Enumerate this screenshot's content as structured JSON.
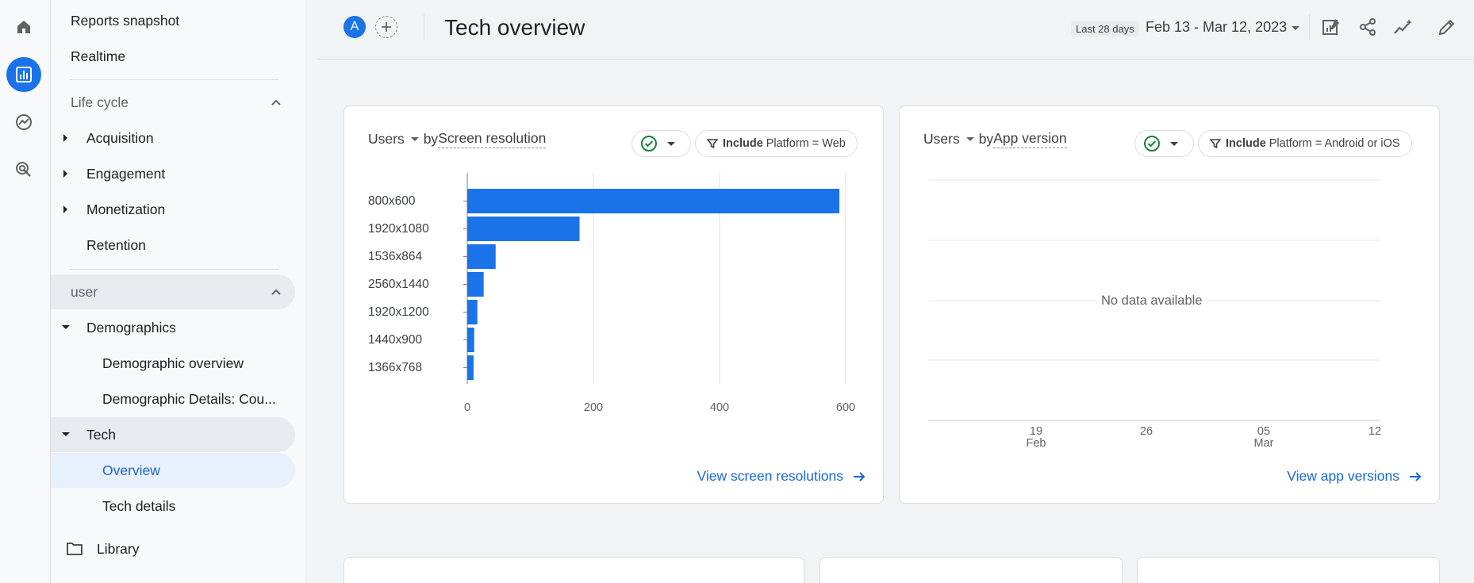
{
  "nav": {
    "reports_snapshot": "Reports snapshot",
    "realtime": "Realtime",
    "lifecycle": {
      "title": "Life cycle",
      "items": [
        "Acquisition",
        "Engagement",
        "Monetization",
        "Retention"
      ]
    },
    "user": {
      "title": "user",
      "demographics": "Demographics",
      "demographic_overview": "Demographic overview",
      "demographic_details": "Demographic Details: Cou...",
      "tech": "Tech",
      "overview": "Overview",
      "tech_details": "Tech details"
    },
    "library": "Library"
  },
  "header": {
    "avatar_letter": "A",
    "title": "Tech overview",
    "date_chip": "Last 28 days",
    "date_range": "Feb 13 - Mar 12, 2023"
  },
  "card1": {
    "metric": "Users",
    "by": "by",
    "dimension": "Screen resolution",
    "filter_include": "Include",
    "filter_text": "Platform = Web",
    "link": "View screen resolutions"
  },
  "card2": {
    "metric": "Users",
    "by": "by",
    "dimension": "App version",
    "filter_include": "Include",
    "filter_text": "Platform = Android or iOS",
    "no_data": "No data available",
    "x_ticks": [
      {
        "day": "19",
        "month": "Feb"
      },
      {
        "day": "26",
        "month": ""
      },
      {
        "day": "05",
        "month": "Mar"
      },
      {
        "day": "12",
        "month": ""
      }
    ],
    "link": "View app versions"
  },
  "colors": {
    "accent": "#1a73e8",
    "bar": "#1a73e8",
    "link": "#1967d2",
    "check_green": "#188038"
  },
  "chart_data": {
    "type": "bar",
    "orientation": "horizontal",
    "title": "",
    "categories": [
      "800x600",
      "1920x1080",
      "1536x864",
      "2560x1440",
      "1920x1200",
      "1440x900",
      "1366x768"
    ],
    "values": [
      590,
      178,
      45,
      26,
      16,
      11,
      10
    ],
    "xlim": [
      0,
      600
    ],
    "x_ticks": [
      0,
      200,
      400,
      600
    ],
    "grid": true
  }
}
